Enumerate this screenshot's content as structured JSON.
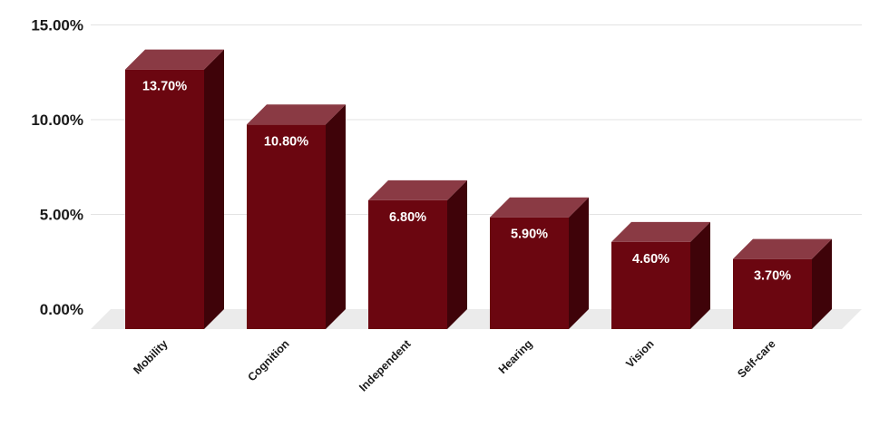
{
  "chart_data": {
    "type": "bar",
    "categories": [
      "Mobility",
      "Cognition",
      "Independent",
      "Hearing",
      "Vision",
      "Self-care"
    ],
    "values": [
      13.7,
      10.8,
      6.8,
      5.9,
      4.6,
      3.7
    ],
    "data_labels": [
      "13.70%",
      "10.80%",
      "6.80%",
      "5.90%",
      "4.60%",
      "3.70%"
    ],
    "y_ticks": [
      {
        "value": 0,
        "label": "0.00%"
      },
      {
        "value": 5,
        "label": "5.00%"
      },
      {
        "value": 10,
        "label": "10.00%"
      },
      {
        "value": 15,
        "label": "15.00%"
      }
    ],
    "ylim": [
      0,
      15
    ],
    "grid": true,
    "style": "3d",
    "colors": {
      "bar_front": "#6b0610",
      "bar_top": "#8a3a44",
      "bar_side": "#3f0309",
      "floor": "#ebebeb"
    }
  }
}
